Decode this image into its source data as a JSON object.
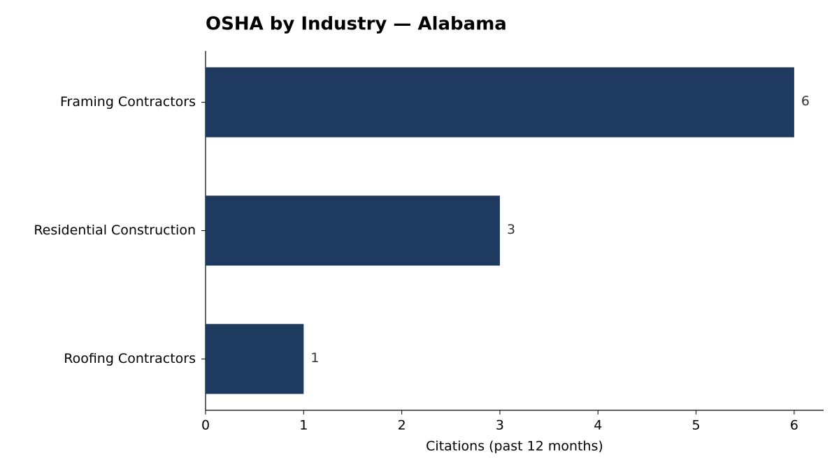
{
  "chart_data": {
    "type": "bar",
    "orientation": "horizontal",
    "title": "OSHA by Industry — Alabama",
    "x_label": "Citations (past 12 months)",
    "categories": [
      "Framing Contractors",
      "Residential Construction",
      "Roofing Contractors"
    ],
    "values": [
      6,
      3,
      1
    ],
    "color": "#1f3a5f",
    "xlim": [
      0,
      6.3
    ],
    "xticks": [
      0,
      1,
      2,
      3,
      4,
      5,
      6
    ],
    "grid": false
  }
}
